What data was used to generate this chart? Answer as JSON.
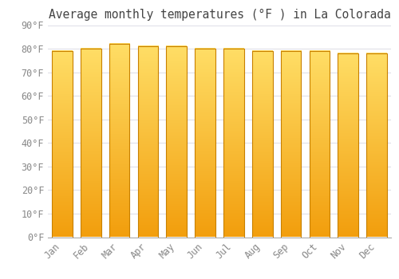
{
  "title": "Average monthly temperatures (°F ) in La Colorada",
  "months": [
    "Jan",
    "Feb",
    "Mar",
    "Apr",
    "May",
    "Jun",
    "Jul",
    "Aug",
    "Sep",
    "Oct",
    "Nov",
    "Dec"
  ],
  "values": [
    79,
    80,
    82,
    81,
    81,
    80,
    80,
    79,
    79,
    79,
    78,
    78
  ],
  "bar_color_top": "#FFD966",
  "bar_color_bottom": "#F0A000",
  "bar_edge_color": "#C88000",
  "background_color": "#FFFFFF",
  "grid_color": "#E0E0E8",
  "text_color": "#888888",
  "title_color": "#444444",
  "ylim": [
    0,
    90
  ],
  "yticks": [
    0,
    10,
    20,
    30,
    40,
    50,
    60,
    70,
    80,
    90
  ],
  "ytick_labels": [
    "0°F",
    "10°F",
    "20°F",
    "30°F",
    "40°F",
    "50°F",
    "60°F",
    "70°F",
    "80°F",
    "90°F"
  ],
  "title_fontsize": 10.5,
  "tick_fontsize": 8.5,
  "bar_width": 0.72
}
